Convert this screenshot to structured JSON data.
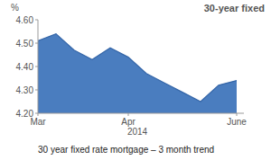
{
  "chart_data": {
    "type": "area",
    "title": "30-year fixed",
    "y_label": "%",
    "x_label": "2014",
    "caption": "30 year fixed rate mortgage – 3 month trend",
    "categories": [
      "Mar",
      null,
      null,
      null,
      null,
      "Apr",
      null,
      null,
      null,
      null,
      null,
      "June"
    ],
    "values": [
      4.51,
      4.54,
      4.47,
      4.43,
      4.48,
      4.44,
      4.37,
      4.33,
      4.29,
      4.25,
      4.32,
      4.34
    ],
    "color": "#4a7dbf",
    "ylim": [
      4.2,
      4.6
    ],
    "yticks": [
      {
        "value": 4.2,
        "label": "4.20"
      },
      {
        "value": 4.3,
        "label": "4.30"
      },
      {
        "value": 4.4,
        "label": "4.40"
      },
      {
        "value": 4.5,
        "label": "4.50"
      },
      {
        "value": 4.6,
        "label": "4.60"
      }
    ],
    "grid": false
  }
}
